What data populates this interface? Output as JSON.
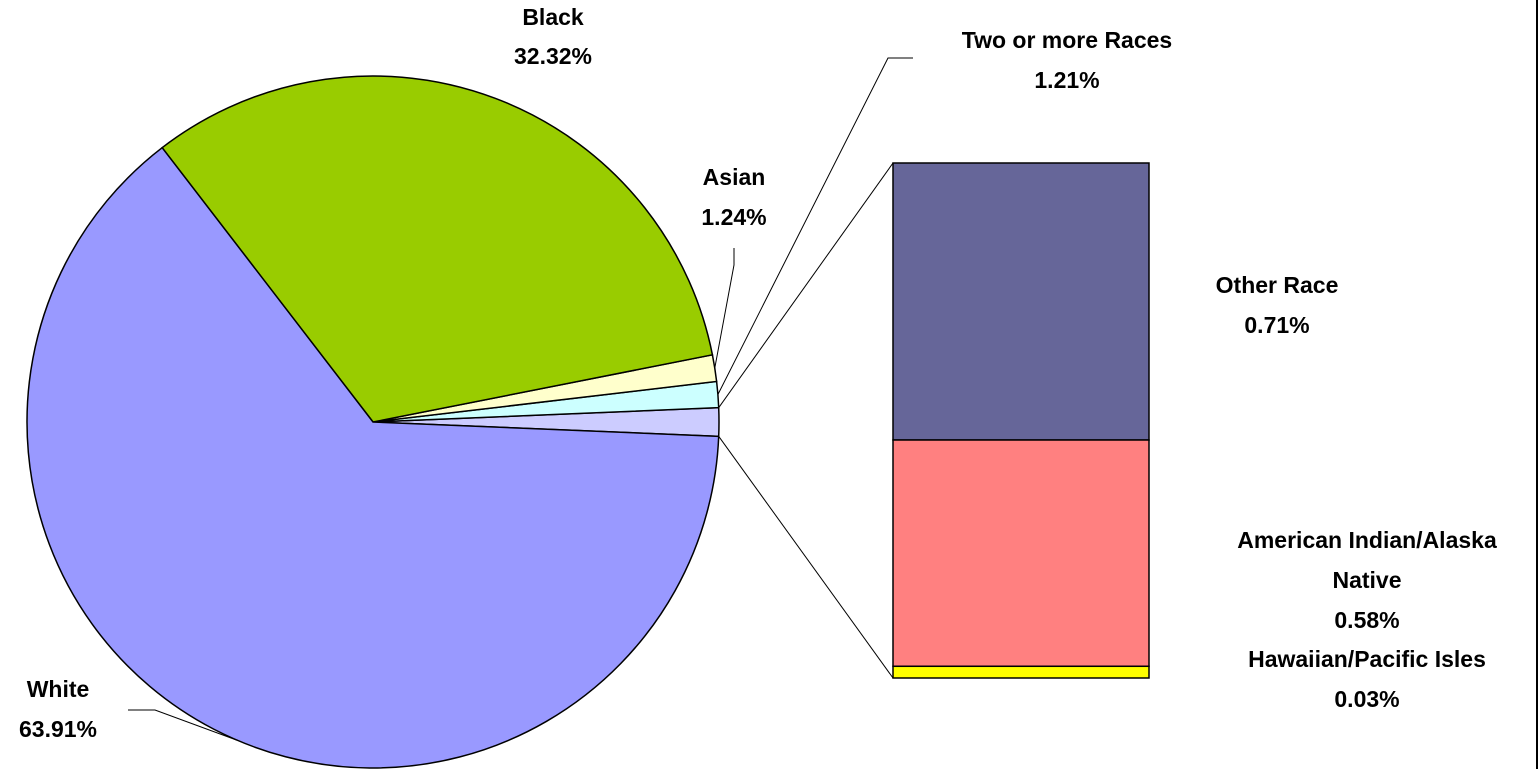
{
  "chart_data": {
    "type": "pie",
    "subtype": "pie-of-bar",
    "slices": [
      {
        "name": "White",
        "value": 63.91,
        "label": "White",
        "value_label": "63.91%",
        "color": "#9999ff"
      },
      {
        "name": "Black",
        "value": 32.32,
        "label": "Black",
        "value_label": "32.32%",
        "color": "#99cc00"
      },
      {
        "name": "Asian",
        "value": 1.24,
        "label": "Asian",
        "value_label": "1.24%",
        "color": "#ffffcc"
      },
      {
        "name": "Two or more Races",
        "value": 1.21,
        "label": "Two or more Races",
        "value_label": "1.21%",
        "color": "#ccffff"
      },
      {
        "name": "Other",
        "value": 1.32,
        "label": "",
        "value_label": "",
        "color": "#ccccff"
      }
    ],
    "bar_breakdown": [
      {
        "name": "Other Race",
        "value": 0.71,
        "label": "Other Race",
        "value_label": "0.71%",
        "color": "#666699"
      },
      {
        "name": "American Indian/Alaska Native",
        "value": 0.58,
        "label_lines": [
          "American Indian/Alaska",
          "Native"
        ],
        "value_label": "0.58%",
        "color": "#ff8080"
      },
      {
        "name": "Hawaiian/Pacific Isles",
        "value": 0.03,
        "label": "Hawaiian/Pacific Isles",
        "value_label": "0.03%",
        "color": "#ffff00"
      }
    ],
    "legend": "none"
  }
}
